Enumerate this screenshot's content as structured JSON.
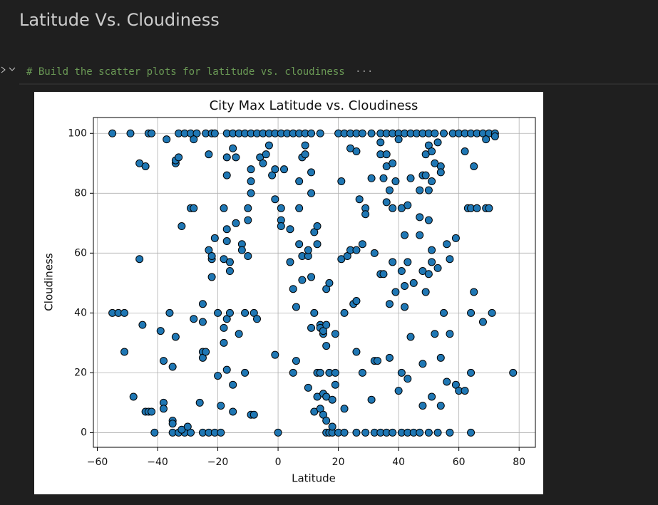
{
  "header": {
    "title": "Latitude Vs. Cloudiness"
  },
  "cell": {
    "code": "# Build the scatter plots for latitude vs. cloudiness",
    "collapsed_marker": "···"
  },
  "chart_data": {
    "type": "scatter",
    "title": "City Max Latitude vs. Cloudiness",
    "x_label": "Latitude",
    "y_label": "Cloudiness",
    "color": "#1f77b4",
    "edgecolor": "#000000",
    "grid": true,
    "xlim": [
      -61.3,
      85.4
    ],
    "ylim": [
      -4.9,
      105.3
    ],
    "xticks": [
      {
        "value": -60,
        "label": "−60"
      },
      {
        "value": -40,
        "label": "−40"
      },
      {
        "value": -20,
        "label": "−20"
      },
      0,
      20,
      40,
      60,
      80
    ],
    "yticks": [
      0,
      20,
      40,
      60,
      80,
      100
    ],
    "x": [
      -55,
      -49,
      -43,
      -42,
      -33,
      -31,
      -29,
      -27,
      -24,
      -22,
      -21,
      -17,
      -15,
      -13,
      -11,
      -9,
      -7,
      -5,
      -3,
      -1,
      1,
      3,
      5,
      7,
      9,
      11,
      14,
      20,
      22,
      24,
      26,
      28,
      31,
      34,
      36,
      38,
      40,
      42,
      44,
      46,
      48,
      50,
      52,
      55,
      58,
      60,
      62,
      64,
      66,
      68,
      70,
      72,
      -41,
      -35,
      -33,
      -31,
      -29,
      -25,
      -23,
      -21,
      -19,
      0,
      16,
      17,
      18,
      20,
      22,
      26,
      29,
      32,
      34,
      36,
      38,
      41,
      43,
      45,
      47,
      50,
      53,
      57,
      64,
      -55,
      -53,
      -51,
      -51,
      -48,
      -46,
      -46,
      -45,
      -44,
      -44,
      -43,
      -42,
      -39,
      -38,
      -38,
      -38,
      -37,
      -36,
      -35,
      -35,
      -35,
      -34,
      -34,
      -34,
      -33,
      -32,
      -32,
      -30,
      -29,
      -28,
      -28,
      -28,
      -26,
      -25,
      -25,
      -25,
      -25,
      -24,
      -23,
      -23,
      -22,
      -22,
      -22,
      -21,
      -20,
      -20,
      -19,
      -18,
      -18,
      -18,
      -18,
      -17,
      -17,
      -17,
      -17,
      -17,
      -17,
      -16,
      -16,
      -16,
      -15,
      -15,
      -15,
      -14,
      -14,
      -13,
      -12,
      -12,
      -11,
      -11,
      -10,
      -10,
      -10,
      -9,
      -9,
      -9,
      -9,
      -8,
      -8,
      -7,
      -6,
      -5,
      -4,
      -3,
      -2,
      -1,
      -1,
      -1,
      1,
      1,
      1,
      2,
      4,
      4,
      5,
      5,
      6,
      6,
      7,
      7,
      7,
      8,
      8,
      8,
      9,
      9,
      10,
      10,
      10,
      11,
      11,
      11,
      11,
      12,
      12,
      12,
      13,
      13,
      13,
      13,
      14,
      14,
      14,
      14,
      15,
      15,
      15,
      15,
      16,
      16,
      16,
      16,
      16,
      17,
      17,
      18,
      18,
      19,
      19,
      19,
      21,
      21,
      22,
      22,
      23,
      24,
      24,
      25,
      26,
      26,
      26,
      26,
      27,
      28,
      28,
      29,
      29,
      31,
      31,
      32,
      32,
      33,
      34,
      34,
      34,
      35,
      35,
      36,
      36,
      36,
      37,
      37,
      37,
      38,
      38,
      38,
      39,
      39,
      40,
      40,
      41,
      41,
      41,
      42,
      42,
      42,
      43,
      43,
      43,
      44,
      44,
      45,
      47,
      47,
      47,
      48,
      48,
      48,
      48,
      49,
      49,
      49,
      50,
      50,
      50,
      50,
      51,
      51,
      51,
      51,
      51,
      52,
      52,
      53,
      53,
      54,
      54,
      54,
      54,
      55,
      56,
      56,
      57,
      57,
      59,
      59,
      60,
      62,
      62,
      63,
      64,
      64,
      64,
      65,
      65,
      66,
      68,
      69,
      69,
      70,
      71,
      72,
      78
    ],
    "values": [
      100,
      100,
      100,
      100,
      100,
      100,
      100,
      100,
      100,
      100,
      100,
      100,
      100,
      100,
      100,
      100,
      100,
      100,
      100,
      100,
      100,
      100,
      100,
      100,
      100,
      100,
      100,
      100,
      100,
      100,
      100,
      100,
      100,
      100,
      100,
      100,
      100,
      100,
      100,
      100,
      100,
      100,
      100,
      100,
      100,
      100,
      100,
      100,
      100,
      100,
      100,
      100,
      0,
      0,
      0,
      0,
      0,
      0,
      0,
      0,
      0,
      0,
      0,
      0,
      0,
      0,
      0,
      0,
      0,
      0,
      0,
      0,
      0,
      0,
      0,
      0,
      0,
      0,
      0,
      0,
      0,
      40,
      40,
      40,
      27,
      12,
      90,
      58,
      36,
      89,
      7,
      7,
      7,
      34,
      10,
      8,
      24,
      98,
      40,
      22,
      4,
      3,
      32,
      90,
      91,
      92,
      69,
      1,
      2,
      75,
      75,
      38,
      98,
      10,
      43,
      37,
      27,
      25,
      27,
      61,
      93,
      58,
      59,
      52,
      65,
      40,
      19,
      9,
      75,
      58,
      35,
      30,
      92,
      86,
      68,
      64,
      21,
      38,
      57,
      54,
      40,
      7,
      16,
      95,
      70,
      92,
      33,
      63,
      61,
      20,
      40,
      71,
      75,
      59,
      84,
      80,
      88,
      6,
      40,
      6,
      38,
      92,
      90,
      93,
      96,
      86,
      78,
      88,
      26,
      71,
      69,
      75,
      88,
      68,
      57,
      48,
      20,
      42,
      24,
      84,
      75,
      63,
      92,
      59,
      51,
      96,
      93,
      15,
      59,
      61,
      52,
      35,
      87,
      80,
      40,
      67,
      7,
      69,
      20,
      12,
      63,
      36,
      35,
      8,
      20,
      13,
      6,
      33,
      34,
      29,
      12,
      48,
      36,
      4,
      50,
      20,
      11,
      2,
      16,
      20,
      33,
      58,
      84,
      40,
      8,
      59,
      61,
      95,
      43,
      94,
      61,
      44,
      27,
      78,
      63,
      20,
      75,
      73,
      85,
      11,
      24,
      60,
      24,
      53,
      97,
      93,
      85,
      53,
      77,
      93,
      89,
      43,
      81,
      25,
      90,
      57,
      75,
      47,
      84,
      14,
      98,
      54,
      75,
      20,
      66,
      42,
      49,
      76,
      57,
      18,
      32,
      85,
      50,
      81,
      72,
      66,
      86,
      54,
      23,
      9,
      93,
      47,
      86,
      81,
      71,
      96,
      53,
      94,
      84,
      61,
      12,
      57,
      33,
      90,
      55,
      97,
      89,
      87,
      25,
      9,
      40,
      63,
      17,
      58,
      33,
      65,
      16,
      14,
      14,
      94,
      75,
      75,
      20,
      40,
      89,
      47,
      75,
      37,
      98,
      75,
      75,
      40,
      99,
      20
    ]
  }
}
